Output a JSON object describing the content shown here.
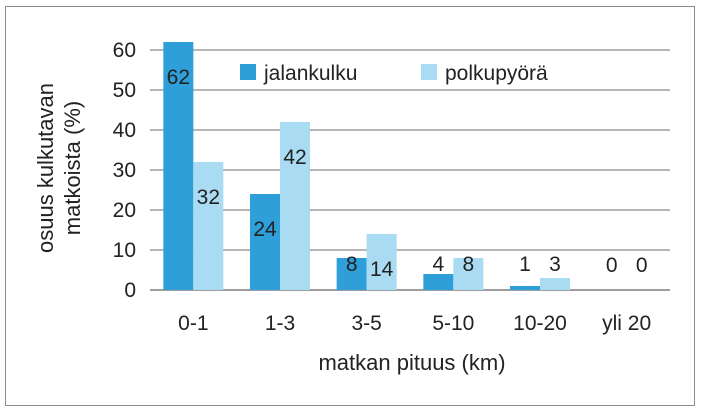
{
  "chart_data": {
    "type": "bar",
    "categories": [
      "0-1",
      "1-3",
      "3-5",
      "5-10",
      "10-20",
      "yli 20"
    ],
    "series": [
      {
        "name": "jalankulku",
        "values": [
          62,
          24,
          8,
          4,
          1,
          0
        ],
        "labels": [
          "62",
          "24",
          "8",
          "4",
          "1",
          "0"
        ],
        "color": "#2e9fd9"
      },
      {
        "name": "polkupyörä",
        "values": [
          32,
          42,
          14,
          8,
          3,
          0
        ],
        "labels": [
          "32",
          "42",
          "14",
          "8",
          "3",
          "0"
        ],
        "color": "#a9dcf2"
      }
    ],
    "xlabel": "matkan pituus (km)",
    "ylabel_lines": [
      "osuus kulkutavan",
      "matkoista (%)"
    ],
    "ylim": [
      0,
      60
    ],
    "yticks": [
      "0",
      "10",
      "20",
      "30",
      "40",
      "50",
      "60"
    ],
    "grid": true,
    "legend_position": "top-center"
  }
}
